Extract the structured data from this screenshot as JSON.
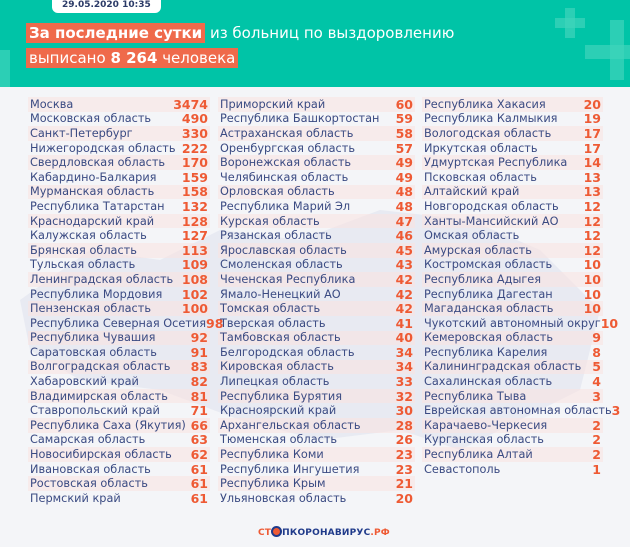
{
  "header": {
    "date": "29.05.2020 10:35",
    "line1_highlight": "За последние сутки",
    "line1_rest": " из больниц по выздоровлению",
    "line2_pre": "выписано ",
    "line2_number": "8 264",
    "line2_post": " человека"
  },
  "columns": [
    [
      [
        "Москва",
        "3474"
      ],
      [
        "Московская область",
        "490"
      ],
      [
        "Санкт-Петербург",
        "330"
      ],
      [
        "Нижегородская область",
        "222"
      ],
      [
        "Свердловская область",
        "170"
      ],
      [
        "Кабардино-Балкария",
        "159"
      ],
      [
        "Мурманская область",
        "158"
      ],
      [
        "Республика Татарстан",
        "132"
      ],
      [
        "Краснодарский край",
        "128"
      ],
      [
        "Калужская область",
        "127"
      ],
      [
        "Брянская область",
        "113"
      ],
      [
        "Тульская область",
        "109"
      ],
      [
        "Ленинградская область",
        "108"
      ],
      [
        "Республика Мордовия",
        "102"
      ],
      [
        "Пензенская область",
        "100"
      ],
      [
        "Республика Северная Осетия",
        "98"
      ],
      [
        "Республика Чувашия",
        "92"
      ],
      [
        "Саратовская область",
        "91"
      ],
      [
        "Волгоградская область",
        "83"
      ],
      [
        "Хабаровский край",
        "82"
      ],
      [
        "Владимирская область",
        "81"
      ],
      [
        "Ставропольский край",
        "71"
      ],
      [
        "Республика Саха (Якутия)",
        "66"
      ],
      [
        "Самарская область",
        "63"
      ],
      [
        "Новосибирская область",
        "62"
      ],
      [
        "Ивановская область",
        "61"
      ],
      [
        "Ростовская область",
        "61"
      ],
      [
        "Пермский край",
        "61"
      ]
    ],
    [
      [
        "Приморский край",
        "60"
      ],
      [
        "Республика Башкортостан",
        "59"
      ],
      [
        "Астраханская область",
        "58"
      ],
      [
        "Оренбургская область",
        "57"
      ],
      [
        "Воронежская область",
        "49"
      ],
      [
        "Челябинская область",
        "49"
      ],
      [
        "Орловская область",
        "48"
      ],
      [
        "Республика Марий Эл",
        "48"
      ],
      [
        "Курская область",
        "47"
      ],
      [
        "Рязанская область",
        "46"
      ],
      [
        "Ярославская область",
        "45"
      ],
      [
        "Смоленская область",
        "43"
      ],
      [
        "Чеченская Республика",
        "42"
      ],
      [
        "Ямало-Ненецкий АО",
        "42"
      ],
      [
        "Томская область",
        "42"
      ],
      [
        "Тверская область",
        "41"
      ],
      [
        "Тамбовская область",
        "40"
      ],
      [
        "Белгородская область",
        "34"
      ],
      [
        "Кировская область",
        "34"
      ],
      [
        "Липецкая область",
        "33"
      ],
      [
        "Республика Бурятия",
        "32"
      ],
      [
        "Красноярский край",
        "30"
      ],
      [
        "Архангельская область",
        "28"
      ],
      [
        "Тюменская область",
        "26"
      ],
      [
        "Республика Коми",
        "23"
      ],
      [
        "Республика Ингушетия",
        "23"
      ],
      [
        "Республика Крым",
        "21"
      ],
      [
        "Ульяновская область",
        "20"
      ]
    ],
    [
      [
        "Республика Хакасия",
        "20"
      ],
      [
        "Республика Калмыкия",
        "19"
      ],
      [
        "Вологодская область",
        "17"
      ],
      [
        "Иркутская область",
        "17"
      ],
      [
        "Удмуртская Республика",
        "14"
      ],
      [
        "Псковская область",
        "13"
      ],
      [
        "Алтайский край",
        "13"
      ],
      [
        "Новгородская область",
        "12"
      ],
      [
        "Ханты-Мансийский АО",
        "12"
      ],
      [
        "Омская область",
        "12"
      ],
      [
        "Амурская область",
        "12"
      ],
      [
        "Костромская область",
        "10"
      ],
      [
        "Республика Адыгея",
        "10"
      ],
      [
        "Республика Дагестан",
        "10"
      ],
      [
        "Магаданская область",
        "10"
      ],
      [
        "Чукотский автономный округ",
        "10"
      ],
      [
        "Кемеровская область",
        "9"
      ],
      [
        "Республика Карелия",
        "8"
      ],
      [
        "Калининградская область",
        "5"
      ],
      [
        "Сахалинская область",
        "4"
      ],
      [
        "Республика Тыва",
        "3"
      ],
      [
        "Еврейская автономная область",
        "3"
      ],
      [
        "Карачаево-Черкесия",
        "2"
      ],
      [
        "Курганская область",
        "2"
      ],
      [
        "Республика Алтай",
        "2"
      ],
      [
        "Севастополь",
        "1"
      ]
    ]
  ],
  "footer": {
    "left": "СТ",
    "right": "ПКОРОНАВИРУС",
    "domain": ".РФ"
  },
  "colors": {
    "header": "#00c4a7",
    "accent": "#ee5a34",
    "text": "#3a4a82"
  }
}
